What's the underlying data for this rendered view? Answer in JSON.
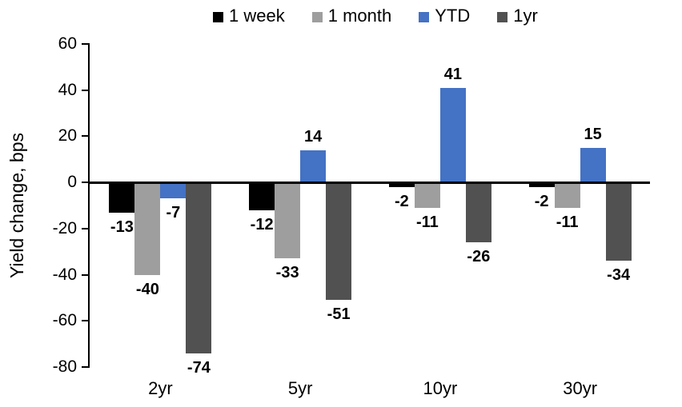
{
  "chart_data": {
    "type": "bar",
    "title": "",
    "categories": [
      "2yr",
      "5yr",
      "10yr",
      "30yr"
    ],
    "series": [
      {
        "name": "1 week",
        "color": "#000000",
        "values": [
          -13,
          -12,
          -2,
          -2
        ]
      },
      {
        "name": "1 month",
        "color": "#9E9E9E",
        "values": [
          -40,
          -33,
          -11,
          -11
        ]
      },
      {
        "name": "YTD",
        "color": "#4472C4",
        "values": [
          -7,
          14,
          41,
          15
        ]
      },
      {
        "name": "1yr",
        "color": "#515151",
        "values": [
          -74,
          -51,
          -26,
          -34
        ]
      }
    ],
    "xlabel": "",
    "ylabel": "Yield change, bps",
    "ylim": [
      -80,
      60
    ],
    "yticks": [
      60,
      40,
      20,
      0,
      -20,
      -40,
      -60,
      -80
    ],
    "grid": false,
    "legend_position": "top",
    "data_labels": "outside_end",
    "axis_color": "#000000",
    "background_color": "#FFFFFF"
  }
}
